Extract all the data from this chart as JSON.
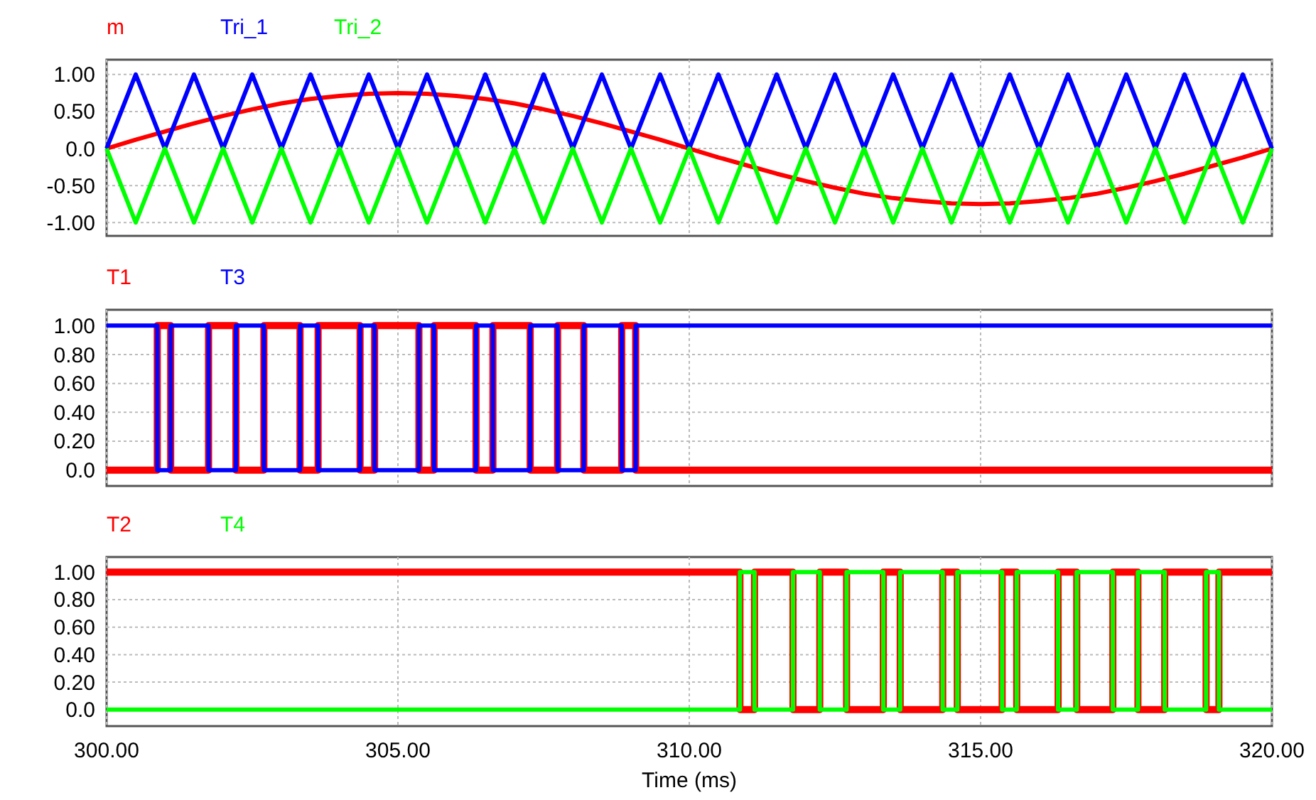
{
  "chart_data": [
    {
      "type": "line",
      "legend": "top left",
      "grid": true,
      "tick_labels": "y",
      "xlim": [
        300,
        320
      ],
      "ylim": [
        -1.18,
        1.2
      ],
      "xticks": [
        {
          "value": 300,
          "label": null
        },
        {
          "value": 305,
          "label": null
        },
        {
          "value": 310,
          "label": null
        },
        {
          "value": 315,
          "label": null
        },
        {
          "value": 320,
          "label": null
        }
      ],
      "yticks": [
        {
          "value": 1,
          "label": "1.00"
        },
        {
          "value": 0.5,
          "label": "0.50"
        },
        {
          "value": 0,
          "label": "0.0"
        },
        {
          "value": -0.5,
          "label": "-0.50"
        },
        {
          "value": -1,
          "label": "-1.00"
        }
      ],
      "series": [
        {
          "name": "m",
          "color": "#ff0000",
          "x": [
            300,
            300.5,
            301,
            301.5,
            302,
            302.5,
            303,
            303.5,
            304,
            304.5,
            305,
            305.5,
            306,
            306.5,
            307,
            307.5,
            308,
            308.5,
            309,
            309.5,
            310,
            310.5,
            311,
            311.5,
            312,
            312.5,
            313,
            313.5,
            314,
            314.5,
            315,
            315.5,
            316,
            316.5,
            317,
            317.5,
            318,
            318.5,
            319,
            319.5,
            320
          ],
          "values": [
            0,
            0.12,
            0.23,
            0.34,
            0.44,
            0.53,
            0.61,
            0.67,
            0.71,
            0.74,
            0.75,
            0.74,
            0.71,
            0.67,
            0.61,
            0.53,
            0.44,
            0.34,
            0.23,
            0.12,
            0,
            -0.12,
            -0.23,
            -0.34,
            -0.44,
            -0.53,
            -0.61,
            -0.67,
            -0.71,
            -0.74,
            -0.75,
            -0.74,
            -0.71,
            -0.67,
            -0.61,
            -0.53,
            -0.44,
            -0.34,
            -0.23,
            -0.12,
            0
          ]
        },
        {
          "name": "Tri_1",
          "color": "#0000ff",
          "x": [
            300,
            300.5,
            301,
            301.5,
            302,
            302.5,
            303,
            303.5,
            304,
            304.5,
            305,
            305.5,
            306,
            306.5,
            307,
            307.5,
            308,
            308.5,
            309,
            309.5,
            310,
            310.5,
            311,
            311.5,
            312,
            312.5,
            313,
            313.5,
            314,
            314.5,
            315,
            315.5,
            316,
            316.5,
            317,
            317.5,
            318,
            318.5,
            319,
            319.5,
            320
          ],
          "values": [
            0,
            1,
            0,
            1,
            0,
            1,
            0,
            1,
            0,
            1,
            0,
            1,
            0,
            1,
            0,
            1,
            0,
            1,
            0,
            1,
            0,
            1,
            0,
            1,
            0,
            1,
            0,
            1,
            0,
            1,
            0,
            1,
            0,
            1,
            0,
            1,
            0,
            1,
            0,
            1,
            0
          ]
        },
        {
          "name": "Tri_2",
          "color": "#00ff00",
          "x": [
            300,
            300.5,
            301,
            301.5,
            302,
            302.5,
            303,
            303.5,
            304,
            304.5,
            305,
            305.5,
            306,
            306.5,
            307,
            307.5,
            308,
            308.5,
            309,
            309.5,
            310,
            310.5,
            311,
            311.5,
            312,
            312.5,
            313,
            313.5,
            314,
            314.5,
            315,
            315.5,
            316,
            316.5,
            317,
            317.5,
            318,
            318.5,
            319,
            319.5,
            320
          ],
          "values": [
            0,
            -1,
            0,
            -1,
            0,
            -1,
            0,
            -1,
            0,
            -1,
            0,
            -1,
            0,
            -1,
            0,
            -1,
            0,
            -1,
            0,
            -1,
            0,
            -1,
            0,
            -1,
            0,
            -1,
            0,
            -1,
            0,
            -1,
            0,
            -1,
            0,
            -1,
            0,
            -1,
            0,
            -1,
            0,
            -1,
            0
          ]
        }
      ]
    },
    {
      "type": "step",
      "legend": "top left",
      "grid": true,
      "tick_labels": "y",
      "xlim": [
        300,
        320
      ],
      "ylim": [
        -0.11,
        1.11
      ],
      "xticks": [
        {
          "value": 300,
          "label": null
        },
        {
          "value": 305,
          "label": null
        },
        {
          "value": 310,
          "label": null
        },
        {
          "value": 315,
          "label": null
        },
        {
          "value": 320,
          "label": null
        }
      ],
      "yticks": [
        {
          "value": 1,
          "label": "1.00"
        },
        {
          "value": 0.8,
          "label": "0.80"
        },
        {
          "value": 0.6,
          "label": "0.60"
        },
        {
          "value": 0.4,
          "label": "0.40"
        },
        {
          "value": 0.2,
          "label": "0.20"
        },
        {
          "value": 0,
          "label": "0.0"
        }
      ],
      "series": [
        {
          "name": "T1",
          "color": "#ff0000",
          "x": [
            300,
            300.87,
            301.1,
            301.75,
            302.22,
            302.7,
            303.32,
            303.63,
            304.35,
            304.6,
            305.36,
            305.62,
            306.34,
            306.63,
            307.27,
            307.74,
            308.19,
            308.84,
            309.08,
            320
          ],
          "values": [
            0,
            1,
            0,
            1,
            0,
            1,
            0,
            1,
            0,
            1,
            0,
            1,
            0,
            1,
            0,
            1,
            0,
            1,
            0,
            0
          ]
        },
        {
          "name": "T3",
          "color": "#0000ff",
          "x": [
            300,
            300.87,
            301.1,
            301.75,
            302.22,
            302.7,
            303.32,
            303.63,
            304.35,
            304.6,
            305.36,
            305.62,
            306.34,
            306.63,
            307.27,
            307.74,
            308.19,
            308.84,
            309.08,
            320
          ],
          "values": [
            1,
            0,
            1,
            0,
            1,
            0,
            1,
            0,
            1,
            0,
            1,
            0,
            1,
            0,
            1,
            0,
            1,
            0,
            1,
            1
          ]
        }
      ]
    },
    {
      "type": "step",
      "legend": "top left",
      "grid": true,
      "xlabel": "Time (ms)",
      "xlim": [
        300,
        320
      ],
      "ylim": [
        -0.12,
        1.11
      ],
      "xticks": [
        {
          "value": 300,
          "label": "300.00"
        },
        {
          "value": 305,
          "label": "305.00"
        },
        {
          "value": 310,
          "label": "310.00"
        },
        {
          "value": 315,
          "label": "315.00"
        },
        {
          "value": 320,
          "label": "320.00"
        }
      ],
      "yticks": [
        {
          "value": 1,
          "label": "1.00"
        },
        {
          "value": 0.8,
          "label": "0.80"
        },
        {
          "value": 0.6,
          "label": "0.60"
        },
        {
          "value": 0.4,
          "label": "0.40"
        },
        {
          "value": 0.2,
          "label": "0.20"
        },
        {
          "value": 0,
          "label": "0.0"
        }
      ],
      "series": [
        {
          "name": "T2",
          "color": "#ff0000",
          "x": [
            300,
            310.87,
            311.12,
            311.78,
            312.24,
            312.7,
            313.33,
            313.62,
            314.35,
            314.6,
            315.37,
            315.62,
            316.33,
            316.65,
            317.27,
            317.7,
            318.16,
            318.87,
            319.09,
            320
          ],
          "values": [
            1,
            0,
            1,
            0,
            1,
            0,
            1,
            0,
            1,
            0,
            1,
            0,
            1,
            0,
            1,
            0,
            1,
            0,
            1,
            1
          ]
        },
        {
          "name": "T4",
          "color": "#00ff00",
          "x": [
            300,
            310.87,
            311.12,
            311.78,
            312.24,
            312.7,
            313.33,
            313.62,
            314.35,
            314.6,
            315.37,
            315.62,
            316.33,
            316.65,
            317.27,
            317.7,
            318.16,
            318.87,
            319.09,
            320
          ],
          "values": [
            0,
            1,
            0,
            1,
            0,
            1,
            0,
            1,
            0,
            1,
            0,
            1,
            0,
            1,
            0,
            1,
            0,
            1,
            0,
            0
          ]
        }
      ]
    }
  ]
}
